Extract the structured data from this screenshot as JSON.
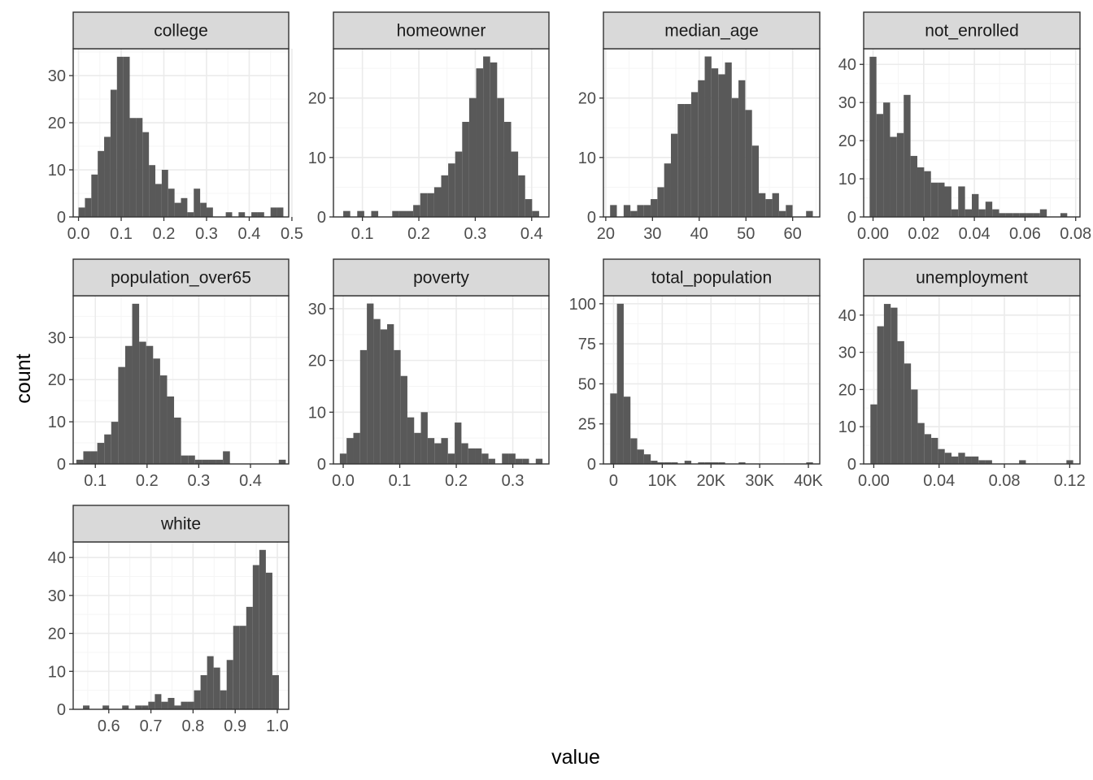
{
  "chart_data": {
    "type": "histogram-facets",
    "xlabel": "value",
    "ylabel": "count",
    "grid": true,
    "facets": [
      {
        "name": "college",
        "bin_width": 0.015,
        "bins_x": [
          0.0075,
          0.0225,
          0.0375,
          0.0525,
          0.0675,
          0.0825,
          0.0975,
          0.1125,
          0.1275,
          0.1425,
          0.1575,
          0.1725,
          0.1875,
          0.2025,
          0.2175,
          0.2325,
          0.2475,
          0.2625,
          0.2775,
          0.2925,
          0.3075,
          0.3225,
          0.3375,
          0.3525,
          0.3675,
          0.3825,
          0.3975,
          0.4125,
          0.4275,
          0.4425,
          0.4575,
          0.4725
        ],
        "counts": [
          2,
          4,
          9,
          14,
          17,
          27,
          34,
          34,
          21,
          21,
          18,
          11,
          7,
          10,
          6,
          3,
          4,
          1,
          6,
          3,
          2,
          0,
          0,
          1,
          0,
          1,
          0,
          1,
          1,
          0,
          2,
          2
        ],
        "xlim": [
          -0.0125,
          0.4925
        ],
        "ylim": [
          0,
          35.7
        ],
        "xticks": [
          {
            "v": 0.0,
            "label": "0.0"
          },
          {
            "v": 0.1,
            "label": "0.1"
          },
          {
            "v": 0.2,
            "label": "0.2"
          },
          {
            "v": 0.3,
            "label": "0.3"
          },
          {
            "v": 0.4,
            "label": "0.4"
          },
          {
            "v": 0.5,
            "label": "0.5"
          }
        ],
        "yticks": [
          {
            "v": 0,
            "label": "0"
          },
          {
            "v": 10,
            "label": "10"
          },
          {
            "v": 20,
            "label": "20"
          },
          {
            "v": 30,
            "label": "30"
          }
        ]
      },
      {
        "name": "homeowner",
        "bin_width": 0.0124,
        "bins_x": [
          0.0722,
          0.0846,
          0.097,
          0.1094,
          0.1218,
          0.1342,
          0.1466,
          0.159,
          0.1714,
          0.1838,
          0.1962,
          0.2086,
          0.221,
          0.2334,
          0.2458,
          0.2582,
          0.2706,
          0.283,
          0.2954,
          0.3078,
          0.3202,
          0.3326,
          0.345,
          0.3574,
          0.3698,
          0.3822,
          0.3946,
          0.407
        ],
        "counts": [
          1,
          0,
          1,
          0,
          1,
          0,
          0,
          1,
          1,
          1,
          2,
          4,
          4,
          5,
          7,
          9,
          11,
          16,
          20,
          25,
          27,
          26,
          20,
          16,
          11,
          7,
          3,
          1
        ],
        "xlim": [
          0.0486,
          0.4306
        ],
        "ylim": [
          0,
          28.3
        ],
        "xticks": [
          {
            "v": 0.1,
            "label": "0.1"
          },
          {
            "v": 0.2,
            "label": "0.2"
          },
          {
            "v": 0.3,
            "label": "0.3"
          },
          {
            "v": 0.4,
            "label": "0.4"
          }
        ],
        "yticks": [
          {
            "v": 0,
            "label": "0"
          },
          {
            "v": 10,
            "label": "10"
          },
          {
            "v": 20,
            "label": "20"
          }
        ]
      },
      {
        "name": "median_age",
        "bin_width": 1.446,
        "bins_x": [
          21.65,
          23.1,
          24.55,
          25.99,
          27.44,
          28.89,
          30.33,
          31.78,
          33.22,
          34.67,
          36.12,
          37.56,
          39.01,
          40.46,
          41.9,
          43.35,
          44.8,
          46.24,
          47.69,
          49.13,
          50.58,
          52.03,
          53.47,
          54.92,
          56.36,
          57.81,
          59.26,
          60.7,
          62.15,
          63.6
        ],
        "counts": [
          2,
          0,
          2,
          1,
          2,
          2,
          3,
          5,
          9,
          14,
          19,
          19,
          21,
          23,
          27,
          25,
          24,
          26,
          20,
          23,
          18,
          12,
          4,
          3,
          4,
          1,
          2,
          0,
          0,
          1
        ],
        "xlim": [
          19.5,
          65.8
        ],
        "ylim": [
          0,
          28.3
        ],
        "xticks": [
          {
            "v": 20,
            "label": "20"
          },
          {
            "v": 30,
            "label": "30"
          },
          {
            "v": 40,
            "label": "40"
          },
          {
            "v": 50,
            "label": "50"
          },
          {
            "v": 60,
            "label": "60"
          }
        ],
        "yticks": [
          {
            "v": 0,
            "label": "0"
          },
          {
            "v": 10,
            "label": "10"
          },
          {
            "v": 20,
            "label": "20"
          }
        ]
      },
      {
        "name": "not_enrolled",
        "bin_width": 0.00269,
        "bins_x": [
          0.0,
          0.00269,
          0.00538,
          0.00807,
          0.01076,
          0.01345,
          0.01614,
          0.01883,
          0.02152,
          0.02421,
          0.0269,
          0.02959,
          0.03228,
          0.03497,
          0.03766,
          0.04035,
          0.04304,
          0.04573,
          0.04842,
          0.05111,
          0.0538,
          0.05649,
          0.05918,
          0.06187,
          0.06456,
          0.06725,
          0.06994,
          0.07263,
          0.07532,
          0.07801
        ],
        "counts": [
          42,
          27,
          30,
          21,
          22,
          32,
          16,
          13,
          12,
          9,
          9,
          8,
          2,
          8,
          2,
          6,
          2,
          4,
          2,
          1,
          1,
          1,
          1,
          1,
          1,
          2,
          0,
          0,
          1,
          0
        ],
        "xlim": [
          -0.0037,
          0.0817
        ],
        "ylim": [
          0,
          44.1
        ],
        "xticks": [
          {
            "v": 0.0,
            "label": "0.00"
          },
          {
            "v": 0.02,
            "label": "0.02"
          },
          {
            "v": 0.04,
            "label": "0.04"
          },
          {
            "v": 0.06,
            "label": "0.06"
          },
          {
            "v": 0.08,
            "label": "0.08"
          }
        ],
        "yticks": [
          {
            "v": 0,
            "label": "0"
          },
          {
            "v": 10,
            "label": "10"
          },
          {
            "v": 20,
            "label": "20"
          },
          {
            "v": 30,
            "label": "30"
          },
          {
            "v": 40,
            "label": "40"
          }
        ]
      },
      {
        "name": "population_over65",
        "bin_width": 0.0135,
        "bins_x": [
          0.07,
          0.0835,
          0.097,
          0.1105,
          0.124,
          0.1375,
          0.151,
          0.1645,
          0.178,
          0.1915,
          0.205,
          0.2185,
          0.232,
          0.2455,
          0.259,
          0.2725,
          0.286,
          0.2995,
          0.313,
          0.3265,
          0.34,
          0.3535,
          0.367,
          0.3805,
          0.394,
          0.4075,
          0.421,
          0.4345,
          0.448,
          0.4615
        ],
        "counts": [
          1,
          3,
          3,
          5,
          7,
          10,
          23,
          28,
          38,
          29,
          28,
          25,
          21,
          16,
          11,
          2,
          2,
          1,
          1,
          1,
          1,
          3,
          0,
          0,
          0,
          0,
          0,
          0,
          0,
          1
        ],
        "xlim": [
          0.0572,
          0.4739
        ],
        "ylim": [
          0,
          39.9
        ],
        "xticks": [
          {
            "v": 0.1,
            "label": "0.1"
          },
          {
            "v": 0.2,
            "label": "0.2"
          },
          {
            "v": 0.3,
            "label": "0.3"
          },
          {
            "v": 0.4,
            "label": "0.4"
          }
        ],
        "yticks": [
          {
            "v": 0,
            "label": "0"
          },
          {
            "v": 10,
            "label": "10"
          },
          {
            "v": 20,
            "label": "20"
          },
          {
            "v": 30,
            "label": "30"
          }
        ]
      },
      {
        "name": "poverty",
        "bin_width": 0.01195,
        "bins_x": [
          0.0,
          0.01195,
          0.0239,
          0.03585,
          0.0478,
          0.05975,
          0.0717,
          0.08365,
          0.0956,
          0.10755,
          0.1195,
          0.13145,
          0.1434,
          0.15535,
          0.1673,
          0.17925,
          0.1912,
          0.20315,
          0.2151,
          0.22705,
          0.239,
          0.25095,
          0.2629,
          0.27485,
          0.2868,
          0.29875,
          0.3107,
          0.32265,
          0.3346,
          0.34655
        ],
        "counts": [
          2,
          5,
          6,
          22,
          31,
          28,
          26,
          27,
          22,
          17,
          9,
          6,
          10,
          5,
          4,
          5,
          2,
          8,
          4,
          3,
          3,
          2,
          1,
          0,
          2,
          2,
          1,
          1,
          0,
          1
        ],
        "xlim": [
          -0.0173,
          0.3639
        ],
        "ylim": [
          0,
          32.5
        ],
        "xticks": [
          {
            "v": 0.0,
            "label": "0.0"
          },
          {
            "v": 0.1,
            "label": "0.1"
          },
          {
            "v": 0.2,
            "label": "0.2"
          },
          {
            "v": 0.3,
            "label": "0.3"
          }
        ],
        "yticks": [
          {
            "v": 0,
            "label": "0"
          },
          {
            "v": 10,
            "label": "10"
          },
          {
            "v": 20,
            "label": "20"
          },
          {
            "v": 30,
            "label": "30"
          }
        ]
      },
      {
        "name": "total_population",
        "bin_width": 1388,
        "bins_x": [
          0,
          1388,
          2776,
          4164,
          5552,
          6940,
          8328,
          9716,
          11104,
          12492,
          13880,
          15268,
          16656,
          18044,
          19432,
          20820,
          22208,
          23596,
          24984,
          26372,
          27760,
          29148,
          30536,
          31924,
          33312,
          34700,
          36088,
          37476,
          38864,
          40252
        ],
        "counts": [
          44,
          100,
          42,
          16,
          9,
          6,
          2,
          1,
          1,
          1,
          0,
          2,
          0,
          1,
          1,
          1,
          1,
          0,
          0,
          1,
          0,
          0,
          0,
          0,
          0,
          0,
          0,
          0,
          0,
          1
        ],
        "xlim": [
          -2082,
          42334
        ],
        "ylim": [
          0,
          105
        ],
        "xticks": [
          {
            "v": 0,
            "label": "0"
          },
          {
            "v": 10000,
            "label": "10K"
          },
          {
            "v": 20000,
            "label": "20K"
          },
          {
            "v": 30000,
            "label": "30K"
          },
          {
            "v": 40000,
            "label": "40K"
          }
        ],
        "yticks": [
          {
            "v": 0,
            "label": "0"
          },
          {
            "v": 25,
            "label": "25"
          },
          {
            "v": 50,
            "label": "50"
          },
          {
            "v": 75,
            "label": "75"
          },
          {
            "v": 100,
            "label": "100"
          }
        ]
      },
      {
        "name": "unemployment",
        "bin_width": 0.00414,
        "bins_x": [
          0.0,
          0.00414,
          0.00828,
          0.01242,
          0.01656,
          0.0207,
          0.02484,
          0.02898,
          0.03312,
          0.03726,
          0.0414,
          0.04554,
          0.04968,
          0.05382,
          0.05796,
          0.0621,
          0.06624,
          0.07038,
          0.07452,
          0.07866,
          0.0828,
          0.08694,
          0.09108,
          0.09522,
          0.09936,
          0.1035,
          0.10764,
          0.11178,
          0.11592,
          0.12006
        ],
        "counts": [
          16,
          37,
          43,
          42,
          33,
          27,
          20,
          11,
          8,
          7,
          4,
          3,
          2,
          3,
          2,
          2,
          1,
          1,
          0,
          0,
          0,
          0,
          1,
          0,
          0,
          0,
          0,
          0,
          0,
          1
        ],
        "xlim": [
          -0.0062,
          0.1263
        ],
        "ylim": [
          0,
          45.2
        ],
        "xticks": [
          {
            "v": 0.0,
            "label": "0.00"
          },
          {
            "v": 0.04,
            "label": "0.04"
          },
          {
            "v": 0.08,
            "label": "0.08"
          },
          {
            "v": 0.12,
            "label": "0.12"
          }
        ],
        "yticks": [
          {
            "v": 0,
            "label": "0"
          },
          {
            "v": 10,
            "label": "10"
          },
          {
            "v": 20,
            "label": "20"
          },
          {
            "v": 30,
            "label": "30"
          },
          {
            "v": 40,
            "label": "40"
          }
        ]
      },
      {
        "name": "white",
        "bin_width": 0.0155,
        "bins_x": [
          0.5465,
          0.562,
          0.5775,
          0.593,
          0.6085,
          0.624,
          0.6395,
          0.655,
          0.6705,
          0.686,
          0.7015,
          0.717,
          0.7325,
          0.748,
          0.7635,
          0.779,
          0.7945,
          0.81,
          0.8255,
          0.841,
          0.8565,
          0.872,
          0.8875,
          0.903,
          0.9185,
          0.934,
          0.9495,
          0.965,
          0.9805,
          0.996
        ],
        "counts": [
          1,
          0,
          0,
          1,
          0,
          0,
          1,
          0,
          1,
          1,
          2,
          4,
          2,
          3,
          1,
          2,
          2,
          5,
          9,
          14,
          11,
          5,
          13,
          22,
          22,
          27,
          38,
          42,
          36,
          9
        ],
        "xlim": [
          0.5155,
          1.027
        ],
        "ylim": [
          0,
          44.1
        ],
        "xticks": [
          {
            "v": 0.6,
            "label": "0.6"
          },
          {
            "v": 0.7,
            "label": "0.7"
          },
          {
            "v": 0.8,
            "label": "0.8"
          },
          {
            "v": 0.9,
            "label": "0.9"
          },
          {
            "v": 1.0,
            "label": "1.0"
          }
        ],
        "yticks": [
          {
            "v": 0,
            "label": "0"
          },
          {
            "v": 10,
            "label": "10"
          },
          {
            "v": 20,
            "label": "20"
          },
          {
            "v": 30,
            "label": "30"
          },
          {
            "v": 40,
            "label": "40"
          }
        ]
      }
    ]
  },
  "colors": {
    "bar": "#595959",
    "strip_fill": "#d9d9d9",
    "panel_border": "#333333",
    "grid_major": "#ebebeb",
    "grid_minor": "#f5f5f5",
    "tick_label": "#4d4d4d"
  }
}
